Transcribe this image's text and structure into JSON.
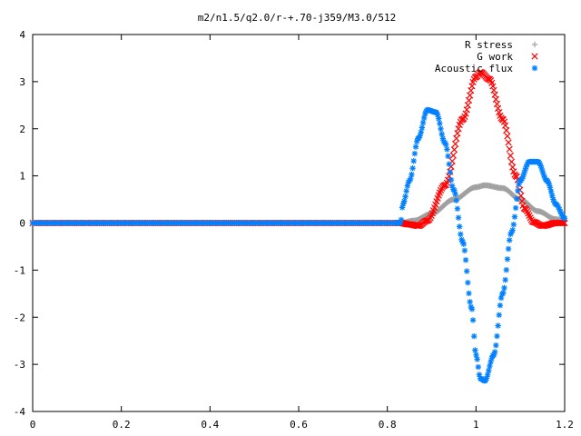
{
  "chart_data": {
    "type": "scatter",
    "title": "m2/n1.5/q2.0/r-+.70-j359/M3.0/512",
    "xlabel": "",
    "ylabel": "",
    "xlim": [
      0,
      1.2
    ],
    "ylim": [
      -4,
      4
    ],
    "x_ticks": [
      "0",
      "0.2",
      "0.4",
      "0.6",
      "0.8",
      "1",
      "1.2"
    ],
    "y_ticks": [
      "4",
      "3",
      "2",
      "1",
      "0",
      "-1",
      "-2",
      "-3",
      "-4"
    ],
    "grid": false,
    "legend_position": "top-right",
    "series": [
      {
        "name": "R stress",
        "marker": "plus",
        "color": "#a0a0a0",
        "knots": [
          [
            0,
            0
          ],
          [
            0.83,
            0
          ],
          [
            0.86,
            0.05
          ],
          [
            0.9,
            0.2
          ],
          [
            0.95,
            0.5
          ],
          [
            1.0,
            0.76
          ],
          [
            1.02,
            0.8
          ],
          [
            1.06,
            0.74
          ],
          [
            1.1,
            0.5
          ],
          [
            1.14,
            0.25
          ],
          [
            1.18,
            0.08
          ],
          [
            1.2,
            0.04
          ]
        ]
      },
      {
        "name": "G work",
        "marker": "cross",
        "color": "#ff0000",
        "knots": [
          [
            0,
            0
          ],
          [
            0.83,
            0
          ],
          [
            0.85,
            -0.03
          ],
          [
            0.87,
            -0.06
          ],
          [
            0.89,
            0.05
          ],
          [
            0.93,
            0.8
          ],
          [
            0.97,
            2.2
          ],
          [
            1.0,
            3.1
          ],
          [
            1.01,
            3.2
          ],
          [
            1.03,
            3.05
          ],
          [
            1.06,
            2.2
          ],
          [
            1.09,
            1.0
          ],
          [
            1.11,
            0.3
          ],
          [
            1.13,
            0.02
          ],
          [
            1.15,
            -0.06
          ],
          [
            1.18,
            0.0
          ],
          [
            1.2,
            0
          ]
        ]
      },
      {
        "name": "Acoustic flux",
        "marker": "star",
        "color": "#0080ff",
        "knots": [
          [
            0,
            0
          ],
          [
            0.83,
            0
          ],
          [
            0.835,
            0.4
          ],
          [
            0.85,
            0.9
          ],
          [
            0.87,
            1.8
          ],
          [
            0.89,
            2.4
          ],
          [
            0.91,
            2.35
          ],
          [
            0.93,
            1.7
          ],
          [
            0.95,
            0.7
          ],
          [
            0.97,
            -0.4
          ],
          [
            0.99,
            -1.8
          ],
          [
            1.0,
            -2.8
          ],
          [
            1.01,
            -3.3
          ],
          [
            1.02,
            -3.35
          ],
          [
            1.04,
            -2.8
          ],
          [
            1.06,
            -1.5
          ],
          [
            1.08,
            -0.2
          ],
          [
            1.1,
            0.9
          ],
          [
            1.12,
            1.3
          ],
          [
            1.14,
            1.3
          ],
          [
            1.16,
            0.9
          ],
          [
            1.18,
            0.4
          ],
          [
            1.2,
            0.1
          ]
        ]
      }
    ]
  }
}
